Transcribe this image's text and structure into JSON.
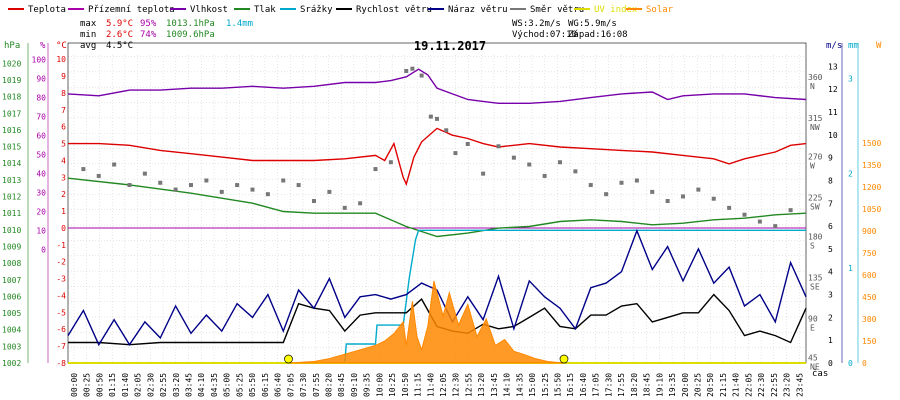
{
  "legend": [
    {
      "label": "Teplota",
      "color": "#dd0000"
    },
    {
      "label": "Přízemní teplota",
      "color": "#aa00aa"
    },
    {
      "label": "Vlhkost",
      "color": "#7700aa"
    },
    {
      "label": "Tlak",
      "color": "#228822"
    },
    {
      "label": "Srážky",
      "color": "#00aacc"
    },
    {
      "label": "Rychlost větru",
      "color": "#000000"
    },
    {
      "label": "Náraz větru",
      "color": "#000088"
    },
    {
      "label": "Směr větru",
      "color": "#777777"
    },
    {
      "label": "UV index",
      "color": "#dddd00"
    },
    {
      "label": "Solar",
      "color": "#ff8800"
    }
  ],
  "stats": {
    "max": {
      "label": "max",
      "temp": "5.9°C",
      "hum": "95%",
      "press": "1013.1hPa",
      "rain": "1.4mm"
    },
    "min": {
      "label": "min",
      "temp": "2.6°C",
      "hum": "74%",
      "press": "1009.6hPa"
    },
    "avg": {
      "label": "avg",
      "temp": "4.5°C"
    }
  },
  "wind_info": {
    "ws": "WS:3.2m/s",
    "wg": "WG:5.9m/s",
    "sunrise": "Východ:07:10",
    "sunset": "Západ:16:08"
  },
  "chart_data": {
    "type": "line",
    "title": "19.11.2017",
    "xlabel": "čas",
    "axes": {
      "press": {
        "unit": "hPa",
        "ticks": [
          1002,
          1003,
          1004,
          1005,
          1006,
          1007,
          1008,
          1009,
          1010,
          1011,
          1012,
          1013,
          1014,
          1015,
          1016,
          1017,
          1018,
          1019,
          1020
        ],
        "color": "#228822"
      },
      "hum": {
        "unit": "%",
        "ticks": [
          0,
          10,
          20,
          30,
          40,
          50,
          60,
          70,
          80,
          90,
          100
        ],
        "color": "#aa00aa"
      },
      "temp": {
        "unit": "°C",
        "ticks": [
          -8,
          -7,
          -6,
          -5,
          -4,
          -3,
          -2,
          -1,
          0,
          1,
          2,
          3,
          4,
          5,
          6,
          7,
          8,
          9,
          10
        ],
        "color": "#dd0000"
      },
      "wind": {
        "unit": "m/s",
        "ticks": [
          0,
          1,
          2,
          3,
          4,
          5,
          6,
          7,
          8,
          9,
          10,
          11,
          12,
          13
        ],
        "color": "#000088"
      },
      "rain": {
        "unit": "mm",
        "ticks": [
          0,
          1,
          2,
          3
        ],
        "color": "#00aacc"
      },
      "solar": {
        "unit": "W",
        "ticks": [
          0,
          150,
          300,
          450,
          600,
          750,
          900,
          1050,
          1200,
          1350,
          1500
        ],
        "color": "#ff8800"
      },
      "dir": {
        "ticks": [
          {
            "deg": "360",
            "dir": "N",
            "wind": 12.5
          },
          {
            "deg": "315",
            "dir": "NW",
            "wind": 10.7
          },
          {
            "deg": "270",
            "dir": "W",
            "wind": 9.0
          },
          {
            "deg": "225",
            "dir": "SW",
            "wind": 7.2
          },
          {
            "deg": "180",
            "dir": "S",
            "wind": 5.5
          },
          {
            "deg": "135",
            "dir": "SE",
            "wind": 3.7
          },
          {
            "deg": "90",
            "dir": "E",
            "wind": 1.9
          },
          {
            "deg": "45",
            "dir": "NE",
            "wind": 0.2
          }
        ]
      }
    },
    "x_ticks": [
      "00:00",
      "00:25",
      "00:50",
      "01:15",
      "01:40",
      "02:05",
      "02:30",
      "02:55",
      "03:20",
      "03:45",
      "04:10",
      "04:35",
      "05:00",
      "05:25",
      "05:50",
      "06:15",
      "06:40",
      "07:05",
      "07:30",
      "07:55",
      "08:20",
      "08:45",
      "09:10",
      "09:35",
      "10:00",
      "10:25",
      "10:50",
      "11:15",
      "11:40",
      "12:05",
      "12:30",
      "12:55",
      "13:20",
      "13:45",
      "14:10",
      "14:35",
      "15:00",
      "15:25",
      "15:50",
      "16:15",
      "16:40",
      "17:05",
      "17:30",
      "17:55",
      "18:20",
      "18:45",
      "19:10",
      "19:35",
      "20:00",
      "20:25",
      "20:50",
      "21:15",
      "21:40",
      "22:05",
      "22:30",
      "22:55",
      "23:20",
      "23:45"
    ],
    "series": [
      {
        "name": "Teplota",
        "axis": "temp",
        "color": "#dd0000",
        "x": [
          0,
          1,
          2,
          3,
          4,
          5,
          6,
          7,
          8,
          9,
          10,
          10.3,
          10.6,
          10.9,
          11,
          11.25,
          11.5,
          12,
          12.5,
          13,
          13.5,
          14,
          14.5,
          15,
          16,
          17,
          18,
          19,
          20,
          21,
          21.5,
          22,
          22.5,
          23,
          23.5,
          24
        ],
        "y": [
          5.0,
          5.0,
          4.9,
          4.6,
          4.4,
          4.2,
          4.0,
          4.0,
          4.0,
          4.1,
          4.3,
          4.0,
          5.0,
          3.0,
          2.6,
          4.2,
          5.1,
          5.9,
          5.5,
          5.3,
          5.0,
          4.8,
          4.9,
          5.0,
          4.8,
          4.7,
          4.6,
          4.5,
          4.3,
          4.1,
          3.8,
          4.1,
          4.3,
          4.5,
          4.9,
          5.0
        ]
      },
      {
        "name": "Vlhkost",
        "axis": "hum",
        "color": "#7700aa",
        "x": [
          0,
          1,
          2,
          3,
          4,
          5,
          6,
          7,
          8,
          9,
          10,
          10.5,
          11,
          11.4,
          11.7,
          12,
          12.5,
          13,
          13.5,
          14,
          14.5,
          15,
          16,
          17,
          18,
          19,
          19.5,
          20,
          21,
          22,
          23,
          24
        ],
        "y": [
          82,
          81,
          84,
          84,
          85,
          85,
          86,
          85,
          86,
          88,
          88,
          89,
          91,
          95,
          92,
          85,
          82,
          79,
          78,
          77,
          77,
          77,
          78,
          80,
          82,
          83,
          79,
          81,
          82,
          82,
          80,
          79
        ]
      },
      {
        "name": "Tlak",
        "axis": "press",
        "color": "#228822",
        "x": [
          0,
          2,
          4,
          6,
          7,
          8,
          10,
          11,
          12,
          13,
          14,
          15,
          16,
          17,
          18,
          19,
          20,
          21,
          22,
          23,
          24
        ],
        "y": [
          1013.1,
          1012.7,
          1012.2,
          1011.6,
          1011.1,
          1011.0,
          1011.0,
          1010.2,
          1009.6,
          1009.8,
          1010.1,
          1010.2,
          1010.5,
          1010.6,
          1010.5,
          1010.3,
          1010.4,
          1010.6,
          1010.7,
          1010.9,
          1011.0
        ]
      },
      {
        "name": "Srážky",
        "axis": "rain",
        "color": "#00aacc",
        "x": [
          0,
          9,
          9.05,
          10,
          10.05,
          10.9,
          11.1,
          11.3,
          11.4,
          24
        ],
        "y": [
          0,
          0,
          0.2,
          0.2,
          0.4,
          0.4,
          0.9,
          1.3,
          1.4,
          1.4
        ]
      },
      {
        "name": "Rychlost větru",
        "axis": "wind",
        "color": "#000000",
        "x": [
          0,
          1,
          2,
          3,
          4,
          5,
          6,
          7,
          7.5,
          8,
          8.5,
          9,
          9.5,
          10,
          10.5,
          11,
          11.5,
          12,
          12.5,
          13,
          13.5,
          14,
          14.5,
          15,
          15.5,
          16,
          16.5,
          17,
          17.5,
          18,
          18.5,
          19,
          19.5,
          20,
          20.5,
          21,
          21.5,
          22,
          22.5,
          23,
          23.5,
          24
        ],
        "y": [
          0.9,
          0.9,
          0.8,
          0.9,
          0.9,
          0.9,
          0.9,
          0.9,
          2.6,
          2.4,
          2.3,
          1.4,
          2.1,
          2.2,
          2.2,
          2.2,
          2.8,
          1.6,
          1.4,
          1.3,
          1.7,
          1.5,
          1.6,
          2.0,
          2.4,
          1.6,
          1.5,
          2.1,
          2.1,
          2.5,
          2.6,
          1.8,
          2.0,
          2.2,
          2.2,
          3.0,
          2.3,
          1.2,
          1.4,
          1.2,
          0.9,
          2.4
        ]
      },
      {
        "name": "Náraz větru",
        "axis": "wind",
        "color": "#000088",
        "x": [
          0,
          0.5,
          1,
          1.5,
          2,
          2.5,
          3,
          3.5,
          4,
          4.5,
          5,
          5.5,
          6,
          6.5,
          7,
          7.5,
          8,
          8.5,
          9,
          9.5,
          10,
          10.5,
          11,
          11.5,
          12,
          12.5,
          13,
          13.5,
          14,
          14.5,
          15,
          15.5,
          16,
          16.5,
          17,
          17.5,
          18,
          18.5,
          19,
          19.5,
          20,
          20.5,
          21,
          21.5,
          22,
          22.5,
          23,
          23.5,
          24
        ],
        "y": [
          1.2,
          2.3,
          0.8,
          1.9,
          0.8,
          1.8,
          1.1,
          2.5,
          1.3,
          2.1,
          1.4,
          2.6,
          2.0,
          3.0,
          1.4,
          3.2,
          2.4,
          3.7,
          2.0,
          2.9,
          3.0,
          2.8,
          3.0,
          3.5,
          3.2,
          1.8,
          2.9,
          1.9,
          3.8,
          1.5,
          3.6,
          2.9,
          2.4,
          1.5,
          3.3,
          3.5,
          4.0,
          5.8,
          4.1,
          5.1,
          3.6,
          5.0,
          3.5,
          4.2,
          2.5,
          3.0,
          1.8,
          4.4,
          2.9
        ]
      },
      {
        "name": "Směr větru",
        "axis": "wind",
        "color": "#777777",
        "type": "scatter",
        "x": [
          0.5,
          1,
          1.5,
          2,
          2.5,
          3,
          3.5,
          4,
          4.5,
          5,
          5.5,
          6,
          6.5,
          7,
          7.5,
          8,
          8.5,
          9,
          9.5,
          10,
          10.5,
          11,
          11.2,
          11.5,
          11.8,
          12,
          12.3,
          12.6,
          13,
          13.5,
          14,
          14.5,
          15,
          15.5,
          16,
          16.5,
          17,
          17.5,
          18,
          18.5,
          19,
          19.5,
          20,
          20.5,
          21,
          21.5,
          22,
          22.5,
          23,
          23.5
        ],
        "y": [
          8.5,
          8.2,
          8.7,
          7.8,
          8.3,
          7.9,
          7.6,
          7.8,
          8.0,
          7.5,
          7.8,
          7.6,
          7.4,
          8.0,
          7.8,
          7.1,
          7.5,
          6.8,
          7.0,
          8.5,
          8.8,
          12.8,
          12.9,
          12.6,
          10.8,
          10.7,
          10.2,
          9.2,
          9.6,
          8.3,
          9.5,
          9.0,
          8.7,
          8.2,
          8.8,
          8.4,
          7.8,
          7.4,
          7.9,
          8.0,
          7.5,
          7.1,
          7.3,
          7.6,
          7.2,
          6.8,
          6.5,
          6.2,
          6.0,
          6.7
        ]
      },
      {
        "name": "UV index",
        "axis": "solar",
        "color": "#dddd00",
        "x": [
          0,
          24
        ],
        "y": [
          0,
          0
        ]
      },
      {
        "name": "Solar",
        "axis": "solar",
        "color": "#ff8800",
        "type": "area",
        "x": [
          7.2,
          8,
          8.5,
          9,
          9.5,
          10,
          10.3,
          10.6,
          10.9,
          11,
          11.2,
          11.35,
          11.5,
          11.7,
          11.9,
          12.2,
          12.4,
          12.7,
          13,
          13.3,
          13.6,
          13.9,
          14.2,
          14.5,
          14.8,
          15.2,
          15.6,
          16.1
        ],
        "y": [
          0,
          10,
          30,
          60,
          90,
          120,
          150,
          200,
          280,
          120,
          420,
          180,
          90,
          250,
          560,
          320,
          480,
          260,
          400,
          180,
          300,
          120,
          160,
          80,
          60,
          30,
          10,
          0
        ]
      }
    ],
    "grid": true
  }
}
